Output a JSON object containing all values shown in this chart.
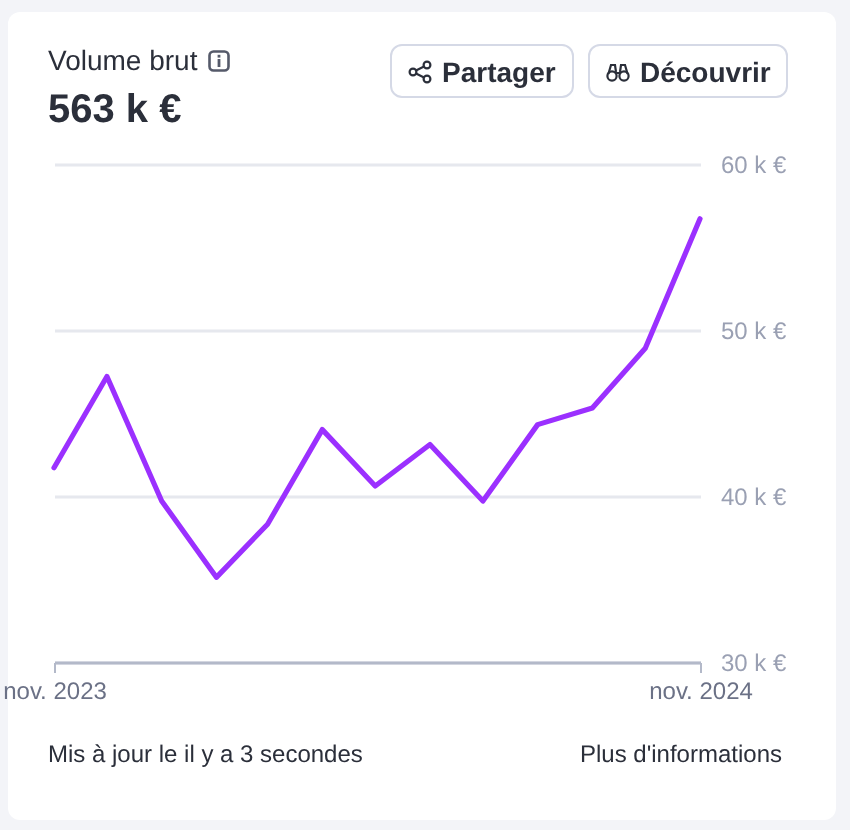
{
  "chart_data": {
    "type": "line",
    "title": "Volume brut",
    "subtitle": "563 k €",
    "annotations": [
      "Partager",
      "Découvrir",
      "Mis à jour le il y a 3 secondes",
      "Plus d'informations"
    ],
    "x": [
      "2023-11",
      "2023-12",
      "2024-01",
      "2024-02",
      "2024-03",
      "2024-04",
      "2024-05",
      "2024-06",
      "2024-07",
      "2024-08",
      "2024-09",
      "2024-10",
      "2024-11"
    ],
    "values": [
      41700,
      47200,
      39700,
      35100,
      38300,
      44000,
      40600,
      43100,
      39700,
      44300,
      45300,
      48900,
      56700
    ],
    "color": "#9b30ff",
    "xlim": [
      "2023-11",
      "2024-11"
    ],
    "xticks": [
      {
        "value": "2023-11",
        "label": "nov. 2023"
      },
      {
        "value": "2024-11",
        "label": "nov. 2024"
      }
    ],
    "ylim": [
      30000,
      60000
    ],
    "yticks": [
      {
        "value": 30000,
        "label": "30 k €"
      },
      {
        "value": 40000,
        "label": "40 k €"
      },
      {
        "value": 50000,
        "label": "50 k €"
      },
      {
        "value": 60000,
        "label": "60 k €"
      }
    ],
    "grid": "y"
  }
}
